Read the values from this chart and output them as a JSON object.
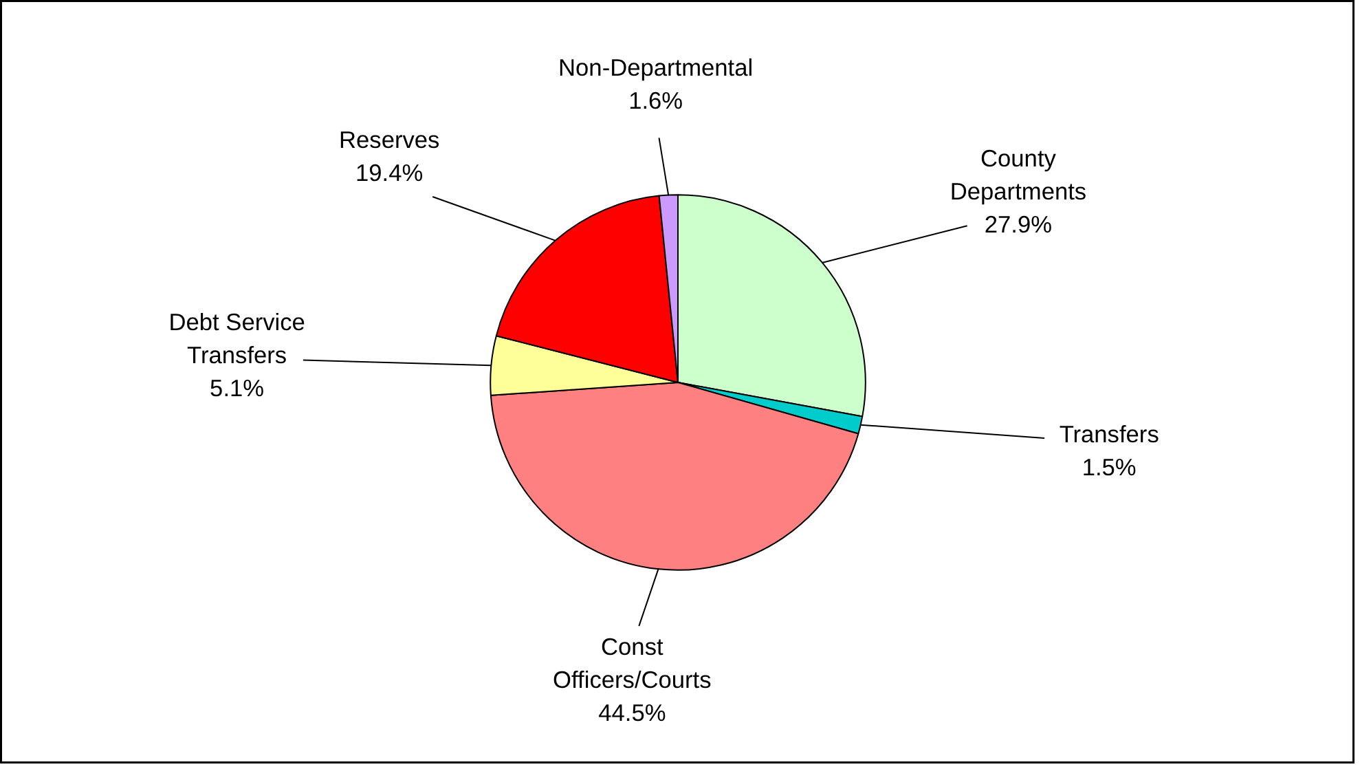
{
  "chart_data": {
    "type": "pie",
    "categories": [
      "County Departments",
      "Transfers",
      "Const Officers/Courts",
      "Debt Service Transfers",
      "Reserves",
      "Non-Departmental"
    ],
    "values": [
      27.9,
      1.5,
      44.5,
      5.1,
      19.4,
      1.6
    ],
    "value_labels": [
      "27.9%",
      "1.5%",
      "44.5%",
      "5.1%",
      "19.4%",
      "1.6%"
    ],
    "colors": [
      "#ccffcc",
      "#00cccc",
      "#ff8080",
      "#ffff99",
      "#ff0000",
      "#cc99ff"
    ]
  }
}
